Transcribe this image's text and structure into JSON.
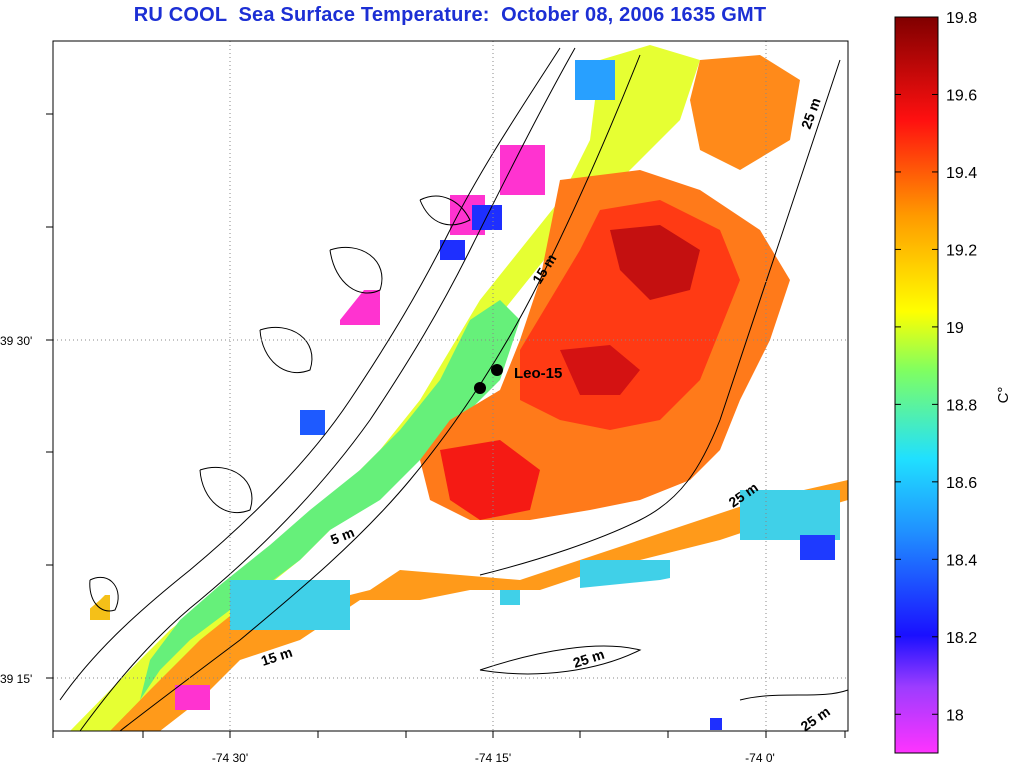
{
  "title": "RU COOL  Sea Surface Temperature:  October 08, 2006 1635 GMT",
  "map": {
    "lat_labels": [
      "39 30'",
      "39 15'"
    ],
    "lon_labels": [
      "-74 30'",
      "-74 15'",
      "-74 0'"
    ],
    "station_label": "Leo-15",
    "contour_labels": [
      "5 m",
      "15 m",
      "15 m",
      "25 m",
      "25 m",
      "25 m",
      "25 m"
    ]
  },
  "colorbar": {
    "unit": "C°",
    "ticks": [
      "19.8",
      "19.6",
      "19.4",
      "19.2",
      "19",
      "18.8",
      "18.6",
      "18.4",
      "18.2",
      "18"
    ],
    "min": 17.9,
    "max": 19.8,
    "colors": [
      "#ff33ff",
      "#2020ff",
      "#20c8ff",
      "#60ff80",
      "#ffff00",
      "#ff8c00",
      "#ff1010",
      "#800000"
    ]
  }
}
